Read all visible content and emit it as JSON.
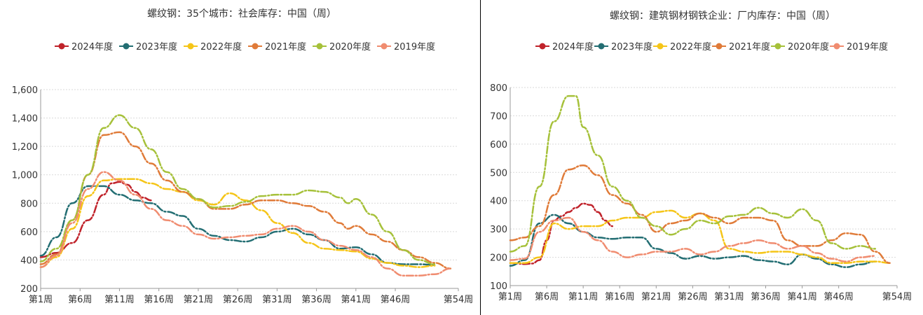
{
  "charts": [
    {
      "title": "螺纹钢：35个城市：社会库存：中国（周）",
      "chart_data": {
        "type": "line",
        "title": "螺纹钢：35个城市：社会库存：中国（周）",
        "xlabel": "",
        "ylabel": "",
        "ylim": [
          200,
          1600
        ],
        "yticks": [
          200,
          400,
          600,
          800,
          1000,
          1200,
          1400,
          1600
        ],
        "ytick_labels": [
          "200",
          "400",
          "600",
          "800",
          "1,000",
          "1,200",
          "1,400",
          "1,600"
        ],
        "xrange": [
          1,
          54
        ],
        "xticks": [
          1,
          6,
          11,
          16,
          21,
          26,
          31,
          36,
          41,
          46,
          54
        ],
        "xtick_labels": [
          "第1周",
          "第6周",
          "第11周",
          "第16周",
          "第21周",
          "第26周",
          "第31周",
          "第36周",
          "第41周",
          "第46周",
          "第54周"
        ],
        "grid": true,
        "legend": "top",
        "series": [
          {
            "name": "2024年度",
            "color": "#c0232b",
            "dash": "10 3 2 3",
            "x": [
              1,
              3,
              5,
              7,
              9,
              10,
              11,
              12,
              13,
              14,
              15
            ],
            "y": [
              420,
              450,
              520,
              680,
              860,
              940,
              950,
              930,
              880,
              840,
              820
            ]
          },
          {
            "name": "2023年度",
            "color": "#236e73",
            "dash": "10 3 2 3",
            "x": [
              1,
              3,
              5,
              7,
              9,
              11,
              13,
              15,
              17,
              19,
              21,
              23,
              25,
              27,
              29,
              31,
              33,
              35,
              37,
              39,
              41,
              43,
              45,
              47,
              49,
              51
            ],
            "y": [
              430,
              560,
              800,
              920,
              920,
              860,
              820,
              800,
              740,
              710,
              620,
              570,
              540,
              530,
              560,
              600,
              620,
              580,
              540,
              480,
              490,
              440,
              380,
              370,
              370,
              365
            ]
          },
          {
            "name": "2022年度",
            "color": "#f5c518",
            "dash": "10 3 2 3",
            "x": [
              1,
              3,
              5,
              7,
              9,
              11,
              13,
              15,
              17,
              19,
              21,
              23,
              25,
              27,
              29,
              31,
              33,
              35,
              37,
              39,
              41,
              43,
              45,
              47,
              49,
              51
            ],
            "y": [
              350,
              420,
              620,
              850,
              960,
              970,
              970,
              940,
              900,
              880,
              820,
              790,
              870,
              820,
              750,
              660,
              590,
              520,
              480,
              470,
              460,
              410,
              380,
              360,
              350,
              360
            ]
          },
          {
            "name": "2021年度",
            "color": "#e07b39",
            "dash": "10 3 2 3",
            "x": [
              1,
              3,
              5,
              7,
              9,
              11,
              13,
              15,
              17,
              19,
              21,
              23,
              25,
              27,
              29,
              31,
              33,
              35,
              37,
              39,
              40,
              41,
              43,
              45,
              47,
              49,
              51,
              53
            ],
            "y": [
              370,
              440,
              680,
              1000,
              1280,
              1300,
              1200,
              1080,
              960,
              880,
              830,
              760,
              760,
              790,
              820,
              820,
              800,
              780,
              740,
              660,
              620,
              640,
              580,
              530,
              470,
              420,
              380,
              340
            ]
          },
          {
            "name": "2020年度",
            "color": "#a6c13a",
            "dash": "10 3 2 3",
            "x": [
              1,
              3,
              5,
              7,
              9,
              11,
              13,
              15,
              17,
              19,
              21,
              23,
              25,
              27,
              29,
              31,
              33,
              35,
              37,
              39,
              40,
              41,
              43,
              45,
              47,
              49,
              51
            ],
            "y": [
              390,
              480,
              680,
              1000,
              1330,
              1420,
              1330,
              1180,
              1020,
              900,
              830,
              770,
              780,
              810,
              850,
              860,
              860,
              890,
              880,
              840,
              800,
              830,
              720,
              600,
              470,
              400,
              370
            ]
          },
          {
            "name": "2019年度",
            "color": "#f08c70",
            "dash": "10 3 2 3",
            "x": [
              1,
              3,
              5,
              7,
              9,
              11,
              13,
              15,
              17,
              19,
              21,
              23,
              25,
              27,
              29,
              31,
              33,
              35,
              37,
              39,
              41,
              43,
              45,
              47,
              49,
              51,
              53
            ],
            "y": [
              350,
              430,
              660,
              900,
              1020,
              960,
              860,
              760,
              680,
              640,
              580,
              550,
              560,
              570,
              580,
              620,
              640,
              600,
              540,
              500,
              470,
              420,
              340,
              290,
              290,
              300,
              340
            ]
          }
        ]
      }
    },
    {
      "title": "螺纹钢：建筑钢材钢铁企业：厂内库存：中国（周）",
      "chart_data": {
        "type": "line",
        "title": "螺纹钢：建筑钢材钢铁企业：厂内库存：中国（周）",
        "xlabel": "",
        "ylabel": "",
        "ylim": [
          100,
          800
        ],
        "yticks": [
          100,
          200,
          300,
          400,
          500,
          600,
          700,
          800
        ],
        "ytick_labels": [
          "100",
          "200",
          "300",
          "400",
          "500",
          "600",
          "700",
          "800"
        ],
        "xrange": [
          1,
          54
        ],
        "xticks": [
          1,
          6,
          11,
          16,
          21,
          26,
          31,
          36,
          41,
          46,
          54
        ],
        "xtick_labels": [
          "第1周",
          "第6周",
          "第11周",
          "第16周",
          "第21周",
          "第26周",
          "第31周",
          "第36周",
          "第41周",
          "第46周",
          "第54周"
        ],
        "grid": true,
        "legend": "top",
        "series": [
          {
            "name": "2024年度",
            "color": "#c0232b",
            "dash": "10 3 2 3",
            "x": [
              1,
              2,
              3,
              4,
              5,
              6,
              7,
              8,
              9,
              10,
              11,
              12,
              13,
              14,
              15
            ],
            "y": [
              180,
              178,
              176,
              178,
              190,
              260,
              330,
              345,
              360,
              375,
              390,
              385,
              360,
              330,
              310
            ]
          },
          {
            "name": "2023年度",
            "color": "#236e73",
            "dash": "10 3 2 3",
            "x": [
              1,
              3,
              5,
              7,
              9,
              11,
              13,
              15,
              17,
              19,
              21,
              23,
              25,
              27,
              29,
              31,
              33,
              35,
              37,
              39,
              41,
              43,
              45,
              47,
              49,
              51
            ],
            "y": [
              170,
              190,
              320,
              350,
              320,
              290,
              270,
              265,
              270,
              270,
              230,
              215,
              195,
              205,
              195,
              200,
              205,
              190,
              185,
              175,
              210,
              195,
              175,
              165,
              175,
              185
            ]
          },
          {
            "name": "2022年度",
            "color": "#f5c518",
            "dash": "10 3 2 3",
            "x": [
              1,
              3,
              5,
              7,
              9,
              11,
              13,
              15,
              17,
              19,
              21,
              23,
              25,
              27,
              29,
              31,
              33,
              35,
              37,
              39,
              41,
              43,
              45,
              47,
              49,
              51,
              53
            ],
            "y": [
              180,
              180,
              200,
              320,
              300,
              310,
              310,
              330,
              340,
              340,
              360,
              365,
              340,
              355,
              330,
              230,
              220,
              215,
              220,
              220,
              210,
              200,
              180,
              180,
              185,
              185,
              180
            ]
          },
          {
            "name": "2021年度",
            "color": "#e07b39",
            "dash": "10 3 2 3",
            "x": [
              1,
              3,
              5,
              7,
              9,
              11,
              13,
              15,
              17,
              19,
              21,
              23,
              25,
              27,
              29,
              31,
              33,
              35,
              37,
              39,
              41,
              43,
              45,
              47,
              49,
              51,
              53
            ],
            "y": [
              260,
              270,
              310,
              420,
              510,
              525,
              490,
              420,
              390,
              350,
              290,
              320,
              330,
              355,
              340,
              320,
              340,
              340,
              330,
              260,
              240,
              240,
              260,
              285,
              280,
              220,
              180
            ]
          },
          {
            "name": "2020年度",
            "color": "#a6c13a",
            "dash": "10 3 2 3",
            "x": [
              1,
              3,
              5,
              7,
              9,
              10,
              11,
              13,
              15,
              17,
              19,
              21,
              23,
              25,
              27,
              29,
              31,
              33,
              35,
              37,
              39,
              41,
              43,
              45,
              47,
              49,
              51
            ],
            "y": [
              220,
              240,
              450,
              680,
              770,
              770,
              660,
              560,
              450,
              400,
              340,
              310,
              280,
              300,
              330,
              320,
              345,
              350,
              375,
              355,
              340,
              370,
              330,
              250,
              230,
              240,
              230
            ]
          },
          {
            "name": "2019年度",
            "color": "#f08c70",
            "dash": "10 3 2 3",
            "x": [
              1,
              3,
              5,
              7,
              9,
              11,
              13,
              15,
              17,
              19,
              21,
              23,
              25,
              27,
              29,
              31,
              33,
              35,
              37,
              39,
              41,
              43,
              45,
              47,
              49,
              51
            ],
            "y": [
              190,
              195,
              290,
              330,
              340,
              290,
              260,
              220,
              200,
              210,
              220,
              220,
              230,
              210,
              220,
              240,
              250,
              260,
              250,
              230,
              240,
              215,
              195,
              185,
              200,
              205
            ]
          }
        ]
      }
    }
  ]
}
